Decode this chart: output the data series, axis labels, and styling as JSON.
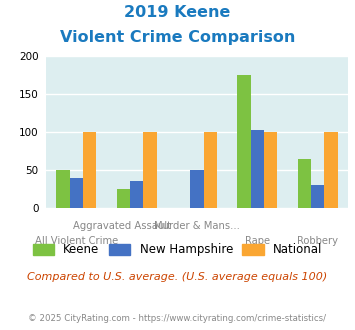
{
  "title_line1": "2019 Keene",
  "title_line2": "Violent Crime Comparison",
  "categories": [
    "All Violent Crime",
    "Aggravated Assault",
    "Murder & Mans...",
    "Rape",
    "Robbery"
  ],
  "series": {
    "Keene": [
      50,
      25,
      0,
      175,
      65
    ],
    "New Hampshire": [
      40,
      35,
      50,
      102,
      30
    ],
    "National": [
      100,
      100,
      100,
      100,
      100
    ]
  },
  "colors": {
    "Keene": "#7dc242",
    "New Hampshire": "#4472c4",
    "National": "#faa632"
  },
  "ylim": [
    0,
    200
  ],
  "yticks": [
    0,
    50,
    100,
    150,
    200
  ],
  "background_color": "#ddeef0",
  "subtitle_note": "Compared to U.S. average. (U.S. average equals 100)",
  "footer": "© 2025 CityRating.com - https://www.cityrating.com/crime-statistics/",
  "title_color": "#1a7abf",
  "footer_color": "#888888",
  "note_color": "#cc4400"
}
